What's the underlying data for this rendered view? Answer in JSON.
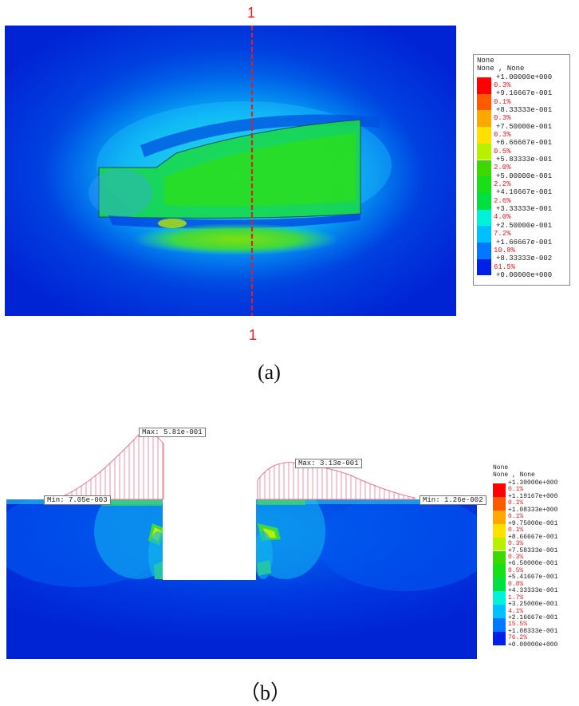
{
  "panel_a": {
    "label": "(a)",
    "cut_line_top": "1",
    "cut_line_bottom": "1",
    "legend": {
      "header_line1": "None",
      "header_line2": "None , None",
      "values": [
        "+1.00000e+000",
        "+9.16667e-001",
        "+8.33333e-001",
        "+7.50000e-001",
        "+6.66667e-001",
        "+5.83333e-001",
        "+5.00000e-001",
        "+4.16667e-001",
        "+3.33333e-001",
        "+2.50000e-001",
        "+1.66667e-001",
        "+8.33333e-002",
        "+0.00000e+000"
      ],
      "percents": [
        "0.3%",
        "0.1%",
        "0.3%",
        "0.3%",
        "0.5%",
        "2.0%",
        "2.2%",
        "2.6%",
        "4.0%",
        "7.2%",
        "10.8%",
        "61.5%"
      ],
      "colors": [
        "#ff0000",
        "#ff5a00",
        "#ffa800",
        "#ffe000",
        "#b8f000",
        "#3cd800",
        "#18e018",
        "#00e040",
        "#00f0d8",
        "#00c0ff",
        "#0078ff",
        "#0020e8"
      ]
    }
  },
  "panel_b": {
    "label": "（b）",
    "annotations": {
      "max_left": "Max: 5.81e-001",
      "min_left": "Min: 7.05e-003",
      "max_right": "Max: 3.13e-001",
      "min_right": "Min: 1.26e-002"
    },
    "legend": {
      "header_line1": "None",
      "header_line2": "None , None",
      "values": [
        "+1.30000e+000",
        "+1.19167e+000",
        "+1.08333e+000",
        "+9.75000e-001",
        "+8.66667e-001",
        "+7.58333e-001",
        "+6.50000e-001",
        "+5.41667e-001",
        "+4.33333e-001",
        "+3.25000e-001",
        "+2.16667e-001",
        "+1.08333e-001",
        "+0.00000e+000"
      ],
      "percents": [
        "0.1%",
        "0.1%",
        "0.1%",
        "0.1%",
        "0.3%",
        "0.3%",
        "0.5%",
        "0.8%",
        "1.7%",
        "4.1%",
        "15.5%",
        "76.2%"
      ],
      "colors": [
        "#ff0000",
        "#ff5a00",
        "#ffa800",
        "#ffe000",
        "#b8f000",
        "#3cd800",
        "#18e018",
        "#00e040",
        "#00f0d8",
        "#00c0ff",
        "#0078ff",
        "#0020e8"
      ]
    }
  }
}
